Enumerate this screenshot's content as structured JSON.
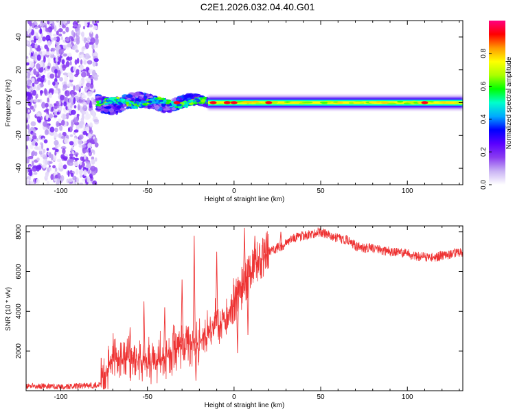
{
  "title": "C2E1.2026.032.04.40.G01",
  "chart_data": [
    {
      "type": "heatmap",
      "name": "spectrogram",
      "xlabel": "Height of straight line (km)",
      "ylabel": "Frequency (Hz)",
      "xlim": [
        -120,
        132
      ],
      "ylim": [
        -50,
        50
      ],
      "x_ticks": [
        -100,
        -50,
        0,
        50,
        100
      ],
      "y_ticks": [
        -40,
        -20,
        0,
        20,
        40
      ],
      "colorbar": {
        "label": "Normalized spectral amplitude",
        "range": [
          0.0,
          1.0
        ],
        "ticks": [
          0.0,
          0.2,
          0.4,
          0.6,
          0.8
        ],
        "colors": [
          "#ffffff",
          "#c9b2f4",
          "#8a3cf0",
          "#5a00ff",
          "#0000ff",
          "#00aaff",
          "#00ffcc",
          "#00ff00",
          "#aaff00",
          "#ffff00",
          "#ff9900",
          "#ff0000",
          "#ff0080"
        ]
      },
      "regions": [
        {
          "x": [
            -120,
            -79
          ],
          "freq_center": 0,
          "freq_halfwidth": 50,
          "amplitude": 0.15,
          "note": "scattered low-amplitude noise"
        },
        {
          "x": [
            -79,
            -15
          ],
          "freq_center": 0,
          "freq_halfwidth": 5,
          "amplitude": 0.6,
          "note": "broad mixed-amplitude band"
        },
        {
          "x": [
            -15,
            132
          ],
          "freq_center": 0,
          "freq_halfwidth": 3,
          "amplitude": 0.75,
          "note": "steady narrow carrier band"
        }
      ],
      "hot_spots": [
        [
          -33,
          0
        ],
        [
          -12,
          0
        ],
        [
          -4,
          0
        ],
        [
          0,
          0
        ],
        [
          20,
          0
        ],
        [
          110,
          0
        ]
      ]
    },
    {
      "type": "line",
      "name": "snr",
      "xlabel": "Height of straight line (km)",
      "ylabel": "SNR (10 * v/v)",
      "xlim": [
        -120,
        132
      ],
      "ylim": [
        0,
        8300
      ],
      "x_ticks": [
        -100,
        -50,
        0,
        50,
        100
      ],
      "y_ticks": [
        2000,
        4000,
        6000,
        8000
      ],
      "color": "#ee3333",
      "x": [
        -120,
        -100,
        -85,
        -77,
        -74,
        -70,
        -60,
        -50,
        -40,
        -30,
        -20,
        -10,
        -5,
        0,
        5,
        10,
        15,
        20,
        25,
        30,
        35,
        40,
        45,
        50,
        55,
        60,
        65,
        70,
        75,
        80,
        85,
        90,
        95,
        100,
        105,
        110,
        115,
        120,
        125,
        132
      ],
      "y": [
        250,
        200,
        250,
        300,
        700,
        1700,
        1600,
        1500,
        1600,
        2400,
        2400,
        3300,
        3700,
        4300,
        5300,
        6100,
        6700,
        7000,
        7200,
        7400,
        7700,
        7800,
        7900,
        8000,
        7800,
        7700,
        7600,
        7300,
        7200,
        7150,
        7100,
        7000,
        6950,
        6900,
        6800,
        6750,
        6700,
        6800,
        6900,
        7000
      ],
      "spikes": [
        [
          -60,
          3200
        ],
        [
          -52,
          4500
        ],
        [
          -40,
          4200
        ],
        [
          -30,
          5600
        ],
        [
          -23,
          7800
        ],
        [
          -22,
          500
        ],
        [
          -10,
          7000
        ],
        [
          -3,
          3900
        ],
        [
          2,
          1900
        ],
        [
          6,
          8200
        ],
        [
          8,
          2800
        ],
        [
          12,
          7800
        ],
        [
          18,
          6500
        ],
        [
          27,
          8000
        ]
      ]
    }
  ]
}
